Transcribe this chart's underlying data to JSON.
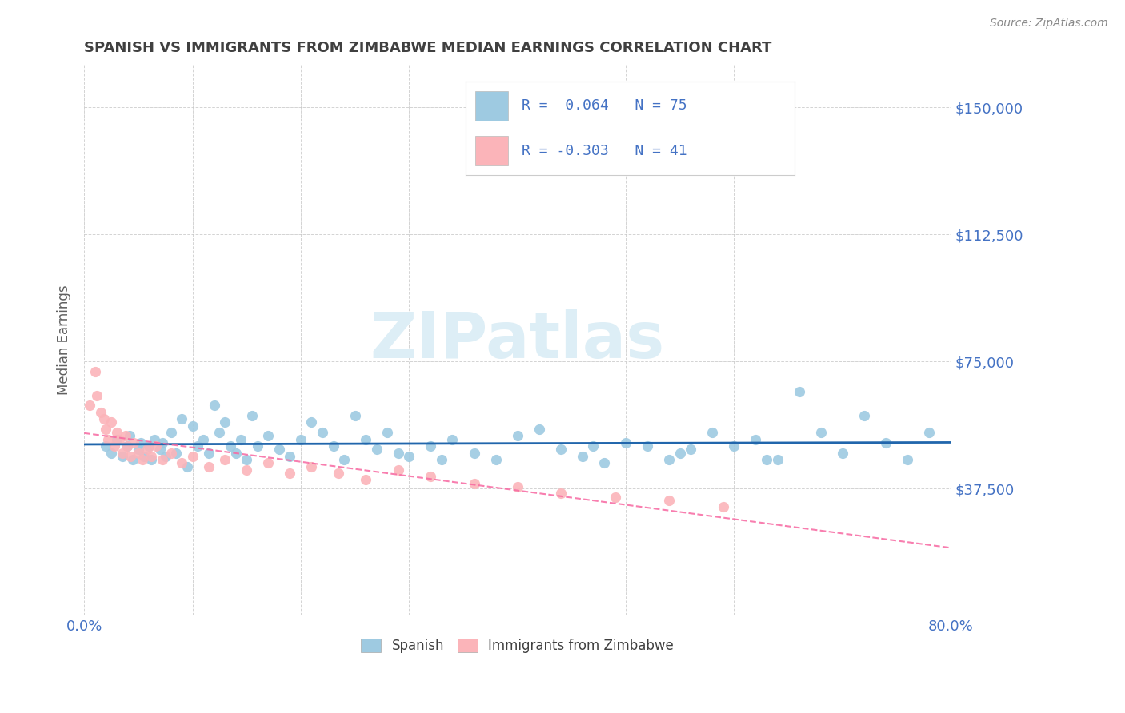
{
  "title": "SPANISH VS IMMIGRANTS FROM ZIMBABWE MEDIAN EARNINGS CORRELATION CHART",
  "source": "Source: ZipAtlas.com",
  "ylabel": "Median Earnings",
  "xlim": [
    0.0,
    0.8
  ],
  "ylim": [
    0,
    162500
  ],
  "yticks": [
    0,
    37500,
    75000,
    112500,
    150000
  ],
  "ytick_labels": [
    "",
    "$37,500",
    "$75,000",
    "$112,500",
    "$150,000"
  ],
  "xticks": [
    0.0,
    0.1,
    0.2,
    0.3,
    0.4,
    0.5,
    0.6,
    0.7,
    0.8
  ],
  "r_spanish": 0.064,
  "n_spanish": 75,
  "r_zimbabwe": -0.303,
  "n_zimbabwe": 41,
  "blue_color": "#9ecae1",
  "pink_color": "#fbb4b9",
  "trend_blue": "#2166ac",
  "trend_pink": "#f768a1",
  "watermark_color": "#ddeef6",
  "title_color": "#404040",
  "axis_label_color": "#606060",
  "tick_color": "#4472c4",
  "legend_text_color": "#4472c4",
  "spanish_scatter_x": [
    0.02,
    0.025,
    0.03,
    0.035,
    0.04,
    0.042,
    0.045,
    0.05,
    0.052,
    0.055,
    0.06,
    0.062,
    0.065,
    0.07,
    0.072,
    0.075,
    0.08,
    0.085,
    0.09,
    0.095,
    0.1,
    0.105,
    0.11,
    0.115,
    0.12,
    0.125,
    0.13,
    0.135,
    0.14,
    0.145,
    0.15,
    0.155,
    0.16,
    0.17,
    0.18,
    0.19,
    0.2,
    0.21,
    0.22,
    0.23,
    0.24,
    0.25,
    0.26,
    0.27,
    0.28,
    0.29,
    0.3,
    0.32,
    0.34,
    0.36,
    0.38,
    0.4,
    0.42,
    0.44,
    0.46,
    0.48,
    0.5,
    0.52,
    0.54,
    0.56,
    0.58,
    0.6,
    0.62,
    0.64,
    0.66,
    0.68,
    0.7,
    0.72,
    0.74,
    0.76,
    0.78,
    0.63,
    0.55,
    0.47,
    0.33
  ],
  "spanish_scatter_y": [
    50000,
    48000,
    52000,
    47000,
    50000,
    53000,
    46000,
    49000,
    51000,
    47000,
    50000,
    46000,
    52000,
    49000,
    51000,
    47000,
    54000,
    48000,
    58000,
    44000,
    56000,
    50000,
    52000,
    48000,
    62000,
    54000,
    57000,
    50000,
    48000,
    52000,
    46000,
    59000,
    50000,
    53000,
    49000,
    47000,
    52000,
    57000,
    54000,
    50000,
    46000,
    59000,
    52000,
    49000,
    54000,
    48000,
    47000,
    50000,
    52000,
    48000,
    46000,
    53000,
    55000,
    49000,
    47000,
    45000,
    51000,
    50000,
    46000,
    49000,
    54000,
    50000,
    52000,
    46000,
    66000,
    54000,
    48000,
    59000,
    51000,
    46000,
    54000,
    46000,
    48000,
    50000,
    46000
  ],
  "zimbabwe_scatter_x": [
    0.005,
    0.01,
    0.012,
    0.015,
    0.018,
    0.02,
    0.022,
    0.025,
    0.028,
    0.03,
    0.032,
    0.035,
    0.038,
    0.04,
    0.043,
    0.046,
    0.05,
    0.054,
    0.058,
    0.062,
    0.066,
    0.072,
    0.08,
    0.09,
    0.1,
    0.115,
    0.13,
    0.15,
    0.17,
    0.19,
    0.21,
    0.235,
    0.26,
    0.29,
    0.32,
    0.36,
    0.4,
    0.44,
    0.49,
    0.54,
    0.59
  ],
  "zimbabwe_scatter_y": [
    62000,
    72000,
    65000,
    60000,
    58000,
    55000,
    52000,
    57000,
    50000,
    54000,
    52000,
    48000,
    53000,
    50000,
    47000,
    51000,
    48000,
    46000,
    49000,
    47000,
    50000,
    46000,
    48000,
    45000,
    47000,
    44000,
    46000,
    43000,
    45000,
    42000,
    44000,
    42000,
    40000,
    43000,
    41000,
    39000,
    38000,
    36000,
    35000,
    34000,
    32000
  ]
}
